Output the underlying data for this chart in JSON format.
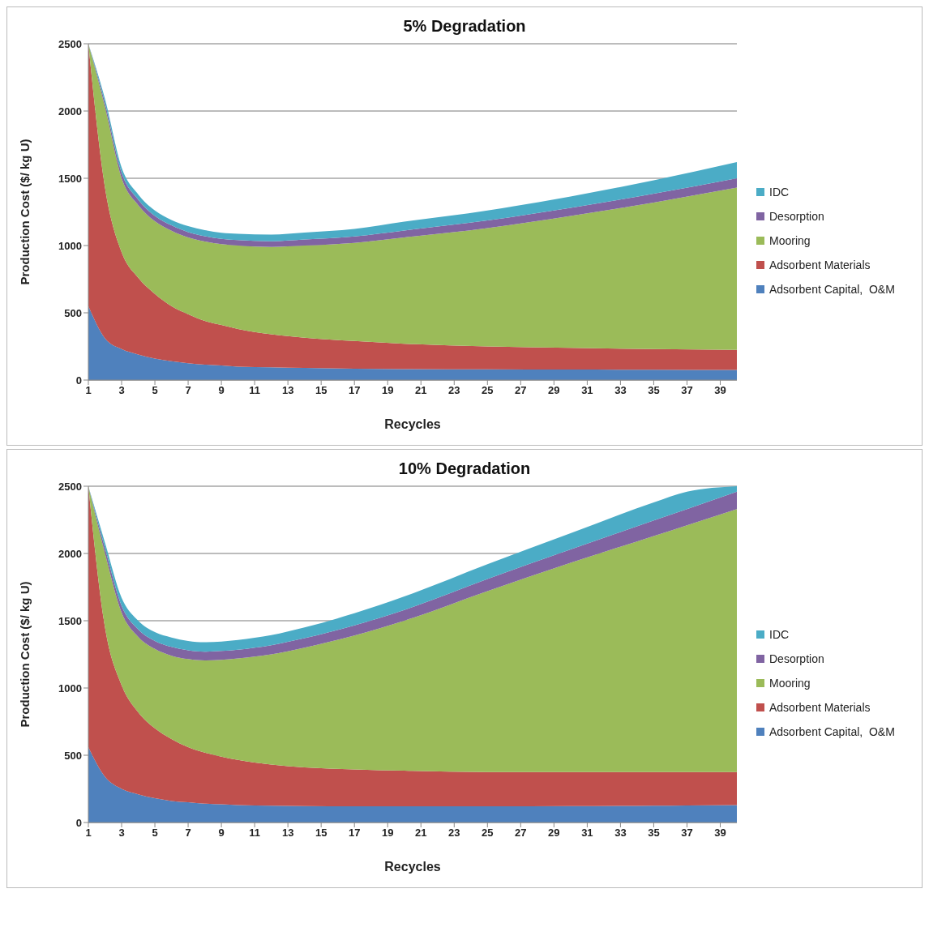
{
  "chart_data": [
    {
      "type": "area",
      "title": "5% Degradation",
      "xlabel": "Recycles",
      "ylabel": "Production Cost ($/ kg U)",
      "stacked": true,
      "grid": "y",
      "legend": "right",
      "x": [
        1,
        2,
        3,
        4,
        5,
        6,
        7,
        8,
        9,
        10,
        12,
        14,
        17,
        20,
        25,
        30,
        35,
        40
      ],
      "xlim": [
        1,
        40
      ],
      "xticks": [
        1,
        3,
        5,
        7,
        9,
        11,
        13,
        15,
        17,
        19,
        21,
        23,
        25,
        27,
        29,
        31,
        33,
        35,
        37,
        39
      ],
      "ylim": [
        0,
        2500
      ],
      "yticks": [
        0,
        500,
        1000,
        1500,
        2000,
        2500
      ],
      "series": [
        {
          "name": "Adsorbent Capital,  O&M",
          "color": "#4f81bd",
          "values": [
            550,
            310,
            230,
            190,
            160,
            140,
            125,
            115,
            108,
            100,
            95,
            90,
            85,
            82,
            80,
            78,
            77,
            75
          ]
        },
        {
          "name": "Adsorbent Materials",
          "color": "#c0504d",
          "values": [
            1950,
            1120,
            720,
            570,
            480,
            410,
            365,
            325,
            302,
            280,
            245,
            225,
            205,
            188,
            170,
            162,
            153,
            150
          ]
        },
        {
          "name": "Mooring",
          "color": "#9bbb59",
          "values": [
            0,
            600,
            550,
            540,
            540,
            560,
            570,
            590,
            600,
            620,
            650,
            685,
            730,
            790,
            880,
            980,
            1090,
            1205
          ]
        },
        {
          "name": "Desorption",
          "color": "#8064a2",
          "values": [
            0,
            30,
            40,
            40,
            40,
            40,
            40,
            40,
            40,
            40,
            42,
            45,
            48,
            52,
            56,
            60,
            65,
            70
          ]
        },
        {
          "name": "IDC",
          "color": "#4bacc6",
          "values": [
            0,
            30,
            40,
            40,
            40,
            40,
            45,
            45,
            45,
            48,
            50,
            52,
            56,
            65,
            75,
            85,
            100,
            120
          ]
        }
      ]
    },
    {
      "type": "area",
      "title": "10% Degradation",
      "xlabel": "Recycles",
      "ylabel": "Production Cost ($/ kg U)",
      "stacked": true,
      "grid": "y",
      "legend": "right",
      "x": [
        1,
        2,
        3,
        4,
        5,
        6,
        7,
        8,
        9,
        10,
        12,
        14,
        17,
        20,
        25,
        30,
        35,
        37,
        40
      ],
      "xlim": [
        1,
        40
      ],
      "xticks": [
        1,
        3,
        5,
        7,
        9,
        11,
        13,
        15,
        17,
        19,
        21,
        23,
        25,
        27,
        29,
        31,
        33,
        35,
        37,
        39
      ],
      "ylim": [
        0,
        2500
      ],
      "yticks": [
        0,
        500,
        1000,
        1500,
        2000,
        2500
      ],
      "series": [
        {
          "name": "Adsorbent Capital,  O&M",
          "color": "#4f81bd",
          "values": [
            560,
            340,
            250,
            210,
            180,
            160,
            150,
            140,
            135,
            130,
            125,
            122,
            120,
            120,
            120,
            122,
            125,
            127,
            130
          ]
        },
        {
          "name": "Adsorbent Materials",
          "color": "#c0504d",
          "values": [
            1940,
            1110,
            770,
            610,
            520,
            460,
            410,
            380,
            355,
            335,
            305,
            288,
            275,
            265,
            255,
            253,
            250,
            248,
            245
          ]
        },
        {
          "name": "Mooring",
          "color": "#9bbb59",
          "values": [
            0,
            550,
            540,
            560,
            590,
            620,
            655,
            685,
            720,
            755,
            820,
            890,
            995,
            1115,
            1345,
            1555,
            1755,
            1835,
            1955
          ]
        },
        {
          "name": "Desorption",
          "color": "#8064a2",
          "values": [
            0,
            40,
            50,
            55,
            60,
            65,
            65,
            65,
            65,
            65,
            68,
            70,
            75,
            80,
            90,
            100,
            115,
            120,
            130
          ]
        },
        {
          "name": "IDC",
          "color": "#4bacc6",
          "values": [
            0,
            40,
            60,
            65,
            65,
            70,
            70,
            70,
            70,
            72,
            75,
            80,
            90,
            100,
            110,
            120,
            135,
            130,
            40
          ]
        }
      ]
    }
  ]
}
